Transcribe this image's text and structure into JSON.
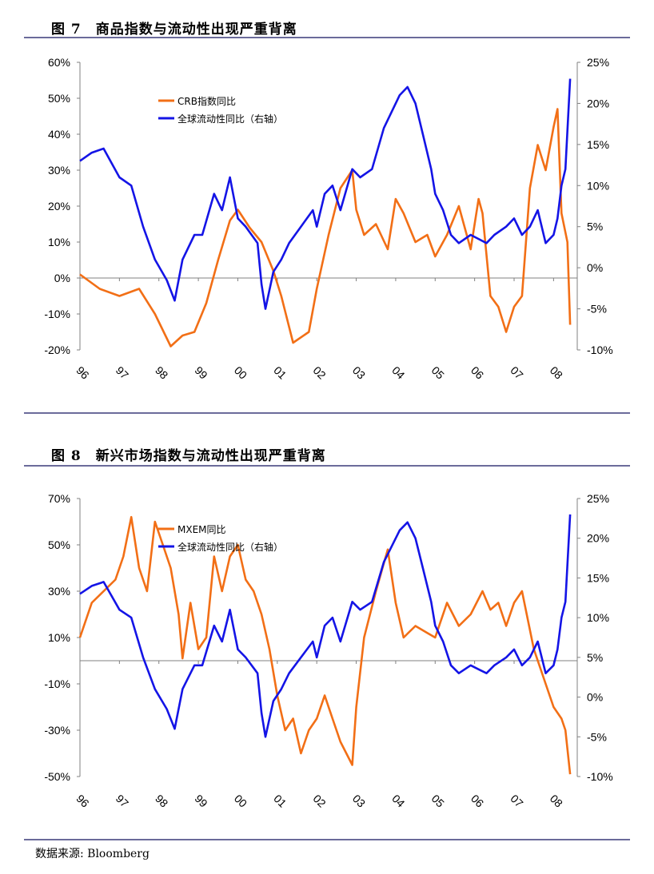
{
  "figure1": {
    "num": "图 7",
    "title": "商品指数与流动性出现严重背离"
  },
  "figure2": {
    "num": "图 8",
    "title": "新兴市场指数与流动性出现严重背离"
  },
  "source": "数据来源: Bloomberg",
  "chart_data": [
    {
      "type": "line",
      "title": "商品指数与流动性出现严重背离",
      "x_labels": [
        "96",
        "97",
        "98",
        "99",
        "00",
        "01",
        "02",
        "03",
        "04",
        "05",
        "06",
        "07",
        "08"
      ],
      "y_left_ticks": [
        "60%",
        "50%",
        "40%",
        "30%",
        "20%",
        "10%",
        "0%",
        "-10%",
        "-20%"
      ],
      "y_left_range": [
        -20,
        60
      ],
      "y_right_ticks": [
        "25%",
        "20%",
        "15%",
        "10%",
        "5%",
        "0%",
        "-5%",
        "-10%"
      ],
      "y_right_range": [
        -10,
        25
      ],
      "legend_position": "top-left",
      "colors": {
        "left_series": "#f26f16",
        "right_series": "#1414e6"
      },
      "series": [
        {
          "name": "CRB指数同比",
          "axis": "left",
          "x": [
            1996.0,
            1996.5,
            1997.0,
            1997.5,
            1997.9,
            1998.3,
            1998.6,
            1998.9,
            1999.2,
            1999.5,
            1999.8,
            2000.0,
            2000.3,
            2000.6,
            2000.9,
            2001.1,
            2001.4,
            2001.8,
            2002.0,
            2002.3,
            2002.6,
            2002.9,
            2003.0,
            2003.2,
            2003.5,
            2003.8,
            2004.0,
            2004.2,
            2004.5,
            2004.8,
            2005.0,
            2005.3,
            2005.6,
            2005.9,
            2006.1,
            2006.2,
            2006.4,
            2006.6,
            2006.8,
            2007.0,
            2007.2,
            2007.4,
            2007.6,
            2007.8,
            2008.0,
            2008.1,
            2008.2,
            2008.35,
            2008.42
          ],
          "values": [
            1,
            -3,
            -5,
            -3,
            -10,
            -19,
            -16,
            -15,
            -7,
            5,
            16,
            19,
            14,
            10,
            2,
            -5,
            -18,
            -15,
            -3,
            12,
            25,
            30,
            19,
            12,
            15,
            8,
            22,
            18,
            10,
            12,
            6,
            12,
            20,
            8,
            22,
            18,
            -5,
            -8,
            -15,
            -8,
            -5,
            25,
            37,
            30,
            42,
            47,
            18,
            10,
            -13
          ]
        },
        {
          "name": "全球流动性同比（右轴）",
          "axis": "right",
          "x": [
            1996.0,
            1996.3,
            1996.6,
            1997.0,
            1997.3,
            1997.6,
            1997.9,
            1998.2,
            1998.4,
            1998.6,
            1998.9,
            1999.1,
            1999.4,
            1999.6,
            1999.8,
            2000.0,
            2000.2,
            2000.5,
            2000.6,
            2000.7,
            2000.9,
            2001.1,
            2001.3,
            2001.6,
            2001.9,
            2002.0,
            2002.2,
            2002.4,
            2002.6,
            2002.9,
            2003.1,
            2003.4,
            2003.7,
            2003.9,
            2004.1,
            2004.3,
            2004.5,
            2004.7,
            2004.9,
            2005.0,
            2005.2,
            2005.4,
            2005.6,
            2005.9,
            2006.1,
            2006.3,
            2006.5,
            2006.8,
            2007.0,
            2007.2,
            2007.4,
            2007.6,
            2007.8,
            2008.0,
            2008.1,
            2008.2,
            2008.3,
            2008.42
          ],
          "values": [
            13,
            14,
            14.5,
            11,
            10,
            5,
            1,
            -1.5,
            -4,
            1,
            4,
            4,
            9,
            7,
            11,
            6,
            5,
            3,
            -2,
            -5,
            -0.5,
            1,
            3,
            5,
            7,
            5,
            9,
            10,
            7,
            12,
            11,
            12,
            17,
            19,
            21,
            22,
            20,
            16,
            12,
            9,
            7,
            4,
            3,
            4,
            3.5,
            3,
            4,
            5,
            6,
            4,
            5,
            7,
            3,
            4,
            6,
            10,
            12,
            23
          ]
        }
      ]
    },
    {
      "type": "line",
      "title": "新兴市场指数与流动性出现严重背离",
      "x_labels": [
        "96",
        "97",
        "98",
        "99",
        "00",
        "01",
        "02",
        "03",
        "04",
        "05",
        "06",
        "07",
        "08"
      ],
      "y_left_ticks": [
        "70%",
        "50%",
        "30%",
        "10%",
        "-10%",
        "-30%",
        "-50%"
      ],
      "y_left_range": [
        -50,
        70
      ],
      "y_right_ticks": [
        "25%",
        "20%",
        "15%",
        "10%",
        "5%",
        "0%",
        "-5%",
        "-10%"
      ],
      "y_right_range": [
        -10,
        25
      ],
      "legend_position": "top-left",
      "colors": {
        "left_series": "#f26f16",
        "right_series": "#1414e6"
      },
      "series": [
        {
          "name": "MXEM同比",
          "axis": "left",
          "x": [
            1996.0,
            1996.3,
            1996.6,
            1996.9,
            1997.1,
            1997.3,
            1997.5,
            1997.7,
            1997.9,
            1998.1,
            1998.3,
            1998.5,
            1998.6,
            1998.8,
            1999.0,
            1999.2,
            1999.4,
            1999.6,
            1999.8,
            2000.0,
            2000.2,
            2000.4,
            2000.6,
            2000.8,
            2001.0,
            2001.2,
            2001.4,
            2001.6,
            2001.8,
            2002.0,
            2002.2,
            2002.4,
            2002.6,
            2002.9,
            2003.0,
            2003.2,
            2003.5,
            2003.8,
            2004.0,
            2004.2,
            2004.5,
            2004.8,
            2005.0,
            2005.3,
            2005.6,
            2005.9,
            2006.2,
            2006.4,
            2006.6,
            2006.8,
            2007.0,
            2007.2,
            2007.5,
            2007.8,
            2008.0,
            2008.2,
            2008.3,
            2008.42
          ],
          "values": [
            10,
            25,
            30,
            35,
            45,
            62,
            40,
            30,
            60,
            50,
            40,
            20,
            1,
            25,
            5,
            10,
            45,
            30,
            45,
            50,
            35,
            30,
            20,
            5,
            -15,
            -30,
            -25,
            -40,
            -30,
            -25,
            -15,
            -25,
            -35,
            -45,
            -20,
            10,
            30,
            48,
            25,
            10,
            15,
            12,
            10,
            25,
            15,
            20,
            30,
            22,
            25,
            15,
            25,
            30,
            5,
            -10,
            -20,
            -25,
            -30,
            -49
          ]
        },
        {
          "name": "全球流动性同比（右轴）",
          "axis": "right",
          "x": [
            1996.0,
            1996.3,
            1996.6,
            1997.0,
            1997.3,
            1997.6,
            1997.9,
            1998.2,
            1998.4,
            1998.6,
            1998.9,
            1999.1,
            1999.4,
            1999.6,
            1999.8,
            2000.0,
            2000.2,
            2000.5,
            2000.6,
            2000.7,
            2000.9,
            2001.1,
            2001.3,
            2001.6,
            2001.9,
            2002.0,
            2002.2,
            2002.4,
            2002.6,
            2002.9,
            2003.1,
            2003.4,
            2003.7,
            2003.9,
            2004.1,
            2004.3,
            2004.5,
            2004.7,
            2004.9,
            2005.0,
            2005.2,
            2005.4,
            2005.6,
            2005.9,
            2006.1,
            2006.3,
            2006.5,
            2006.8,
            2007.0,
            2007.2,
            2007.4,
            2007.6,
            2007.8,
            2008.0,
            2008.1,
            2008.2,
            2008.3,
            2008.42
          ],
          "values": [
            13,
            14,
            14.5,
            11,
            10,
            5,
            1,
            -1.5,
            -4,
            1,
            4,
            4,
            9,
            7,
            11,
            6,
            5,
            3,
            -2,
            -5,
            -0.5,
            1,
            3,
            5,
            7,
            5,
            9,
            10,
            7,
            12,
            11,
            12,
            17,
            19,
            21,
            22,
            20,
            16,
            12,
            9,
            7,
            4,
            3,
            4,
            3.5,
            3,
            4,
            5,
            6,
            4,
            5,
            7,
            3,
            4,
            6,
            10,
            12,
            23
          ]
        }
      ]
    }
  ]
}
